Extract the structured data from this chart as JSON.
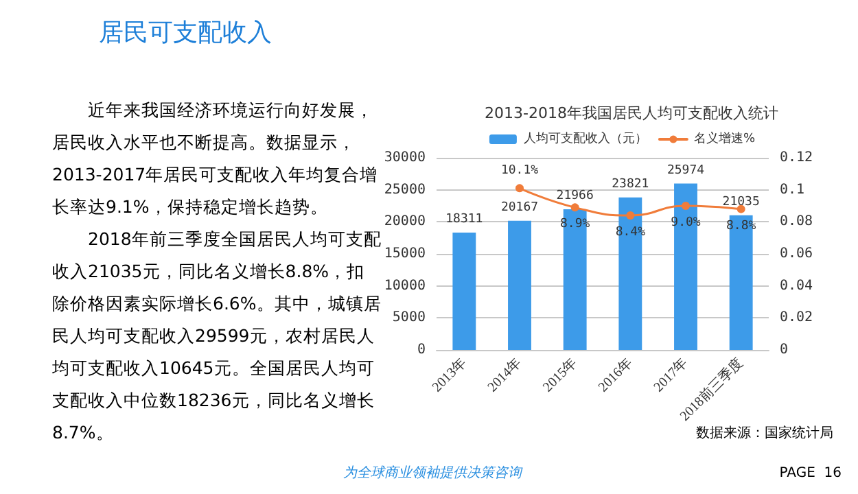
{
  "chart_data": {
    "type": "bar",
    "title": "2013-2018年我国居民人均可支配收入统计",
    "categories": [
      "2013年",
      "2014年",
      "2015年",
      "2016年",
      "2017年",
      "2018前三季度"
    ],
    "series": [
      {
        "name": "人均可支配收入（元）",
        "color": "#3d9be9",
        "values": [
          18311,
          20167,
          21966,
          23821,
          25974,
          21035
        ],
        "value_labels": [
          "18311",
          "20167",
          "21966",
          "23821",
          "25974",
          "21035"
        ]
      },
      {
        "name": "名义增速%",
        "type": "line",
        "axis": "y2",
        "color": "#f07c3a",
        "marker": "circle",
        "values": [
          null,
          0.101,
          0.089,
          0.084,
          0.09,
          0.088
        ],
        "value_labels": [
          null,
          "10.1%",
          "8.9%",
          "8.4%",
          "9.0%",
          "8.8%"
        ]
      }
    ],
    "ylim": [
      0,
      30000
    ],
    "yticks": [
      0,
      5000,
      10000,
      15000,
      20000,
      25000,
      30000
    ],
    "y2lim": [
      0,
      0.12
    ],
    "y2ticks": [
      0,
      0.02,
      0.04,
      0.06,
      0.08,
      0.1,
      0.12
    ],
    "grid": "y",
    "legend": "top",
    "annotations": [
      "居民可支配收入",
      "近年来我国经济环境运行向好发展，居民收入水平也不断提高。数据显示，2013-2017年居民可支配收入年均复合增长率达9.1%，保持稳定增长趋势。",
      "2018年前三季度全国居民人均可支配收入21035元，同比名义增长8.8%，扣除价格因素实际增长6.6%。其中，城镇居民人均可支配收入29599元，农村居民人均可支配收入10645元。全国居民人均可支配收入中位数18236元，同比名义增长8.7%。",
      "数据来源：国家统计局",
      "为全球商业领袖提供决策咨询",
      "PAGE  16"
    ]
  }
}
